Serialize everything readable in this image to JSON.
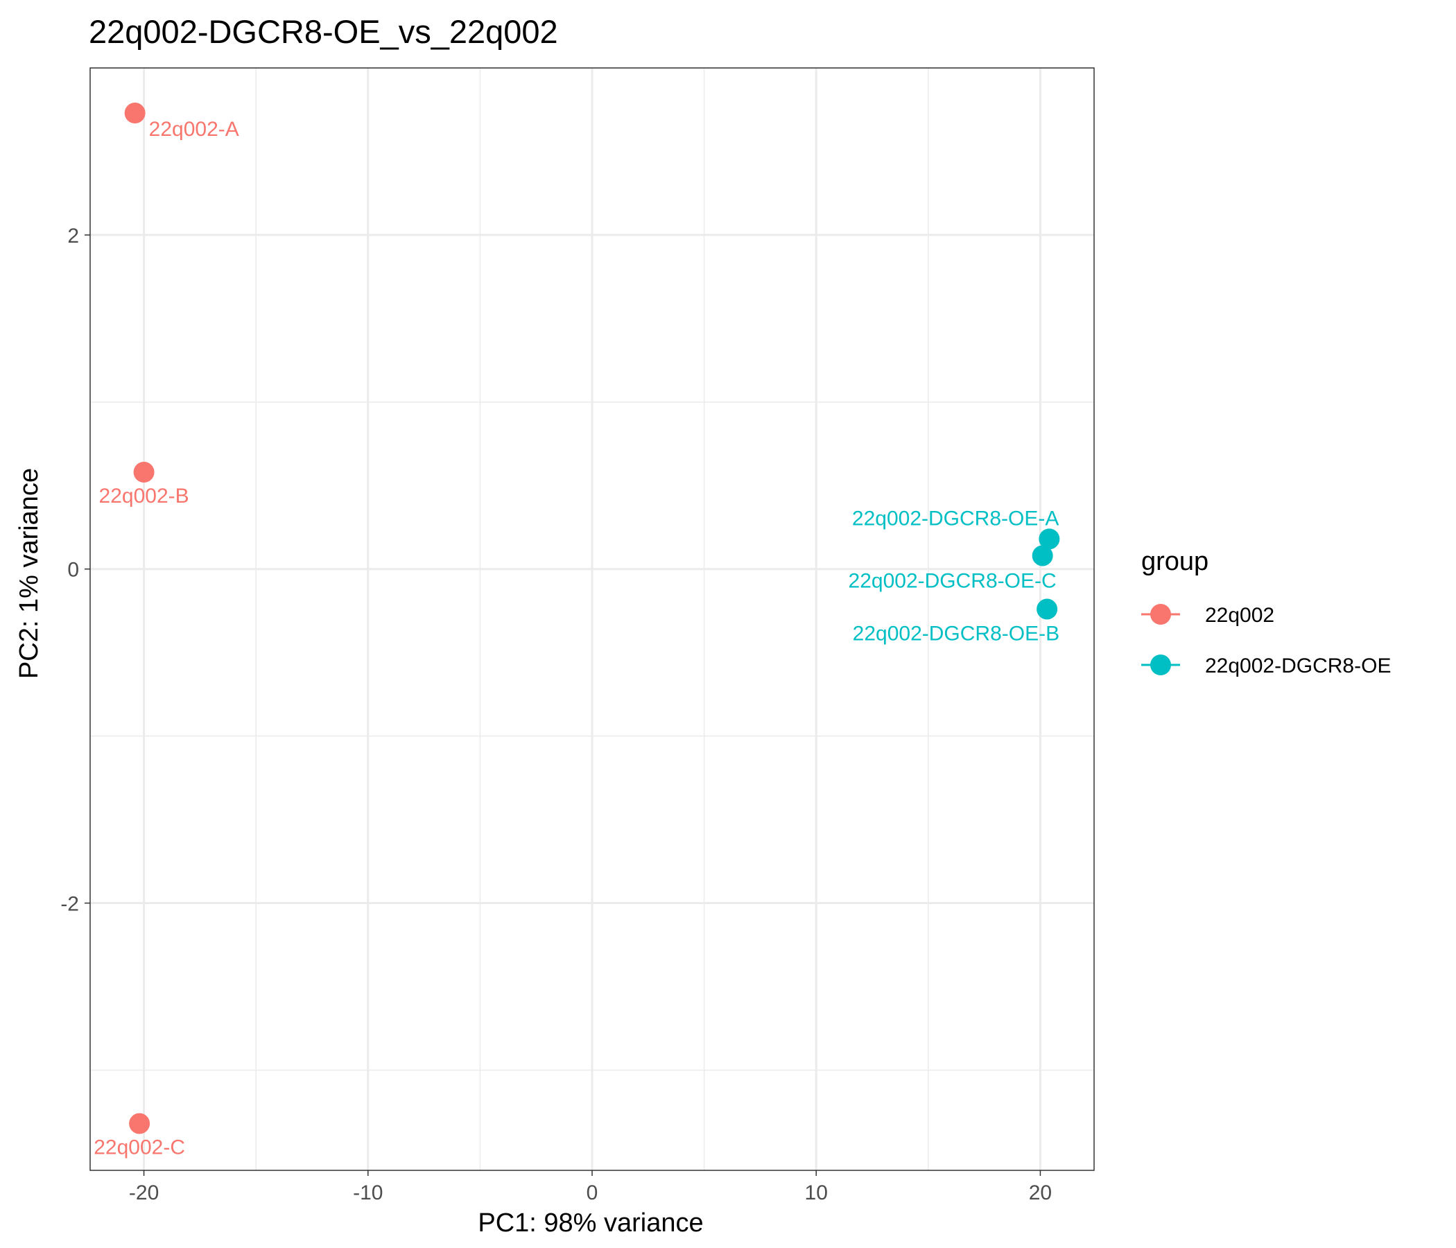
{
  "chart_data": {
    "type": "scatter",
    "title": "22q002-DGCR8-OE_vs_22q002",
    "xlabel": "PC1: 98% variance",
    "ylabel": "PC2: 1% variance",
    "xlim": [
      -22.4,
      22.4
    ],
    "ylim": [
      -3.6,
      3.0
    ],
    "x_ticks": [
      -20,
      -10,
      0,
      10,
      20
    ],
    "x_tick_labels": [
      "-20",
      "-10",
      "0",
      "10",
      "20"
    ],
    "y_ticks": [
      -2,
      0,
      2
    ],
    "y_tick_labels": [
      "-2",
      "0",
      "2"
    ],
    "grid": true,
    "legend": {
      "title": "group",
      "position": "right",
      "entries": [
        "22q002",
        "22q002-DGCR8-OE"
      ]
    },
    "series": [
      {
        "name": "22q002",
        "color": "#F8766D",
        "points": [
          {
            "label": "22q002-A",
            "x": -20.4,
            "y": 2.73
          },
          {
            "label": "22q002-B",
            "x": -20.0,
            "y": 0.58
          },
          {
            "label": "22q002-C",
            "x": -20.2,
            "y": -3.32
          }
        ]
      },
      {
        "name": "22q002-DGCR8-OE",
        "color": "#00BFC4",
        "points": [
          {
            "label": "22q002-DGCR8-OE-A",
            "x": 20.4,
            "y": 0.18
          },
          {
            "label": "22q002-DGCR8-OE-C",
            "x": 20.1,
            "y": 0.08
          },
          {
            "label": "22q002-DGCR8-OE-B",
            "x": 20.3,
            "y": -0.24
          }
        ]
      }
    ]
  }
}
